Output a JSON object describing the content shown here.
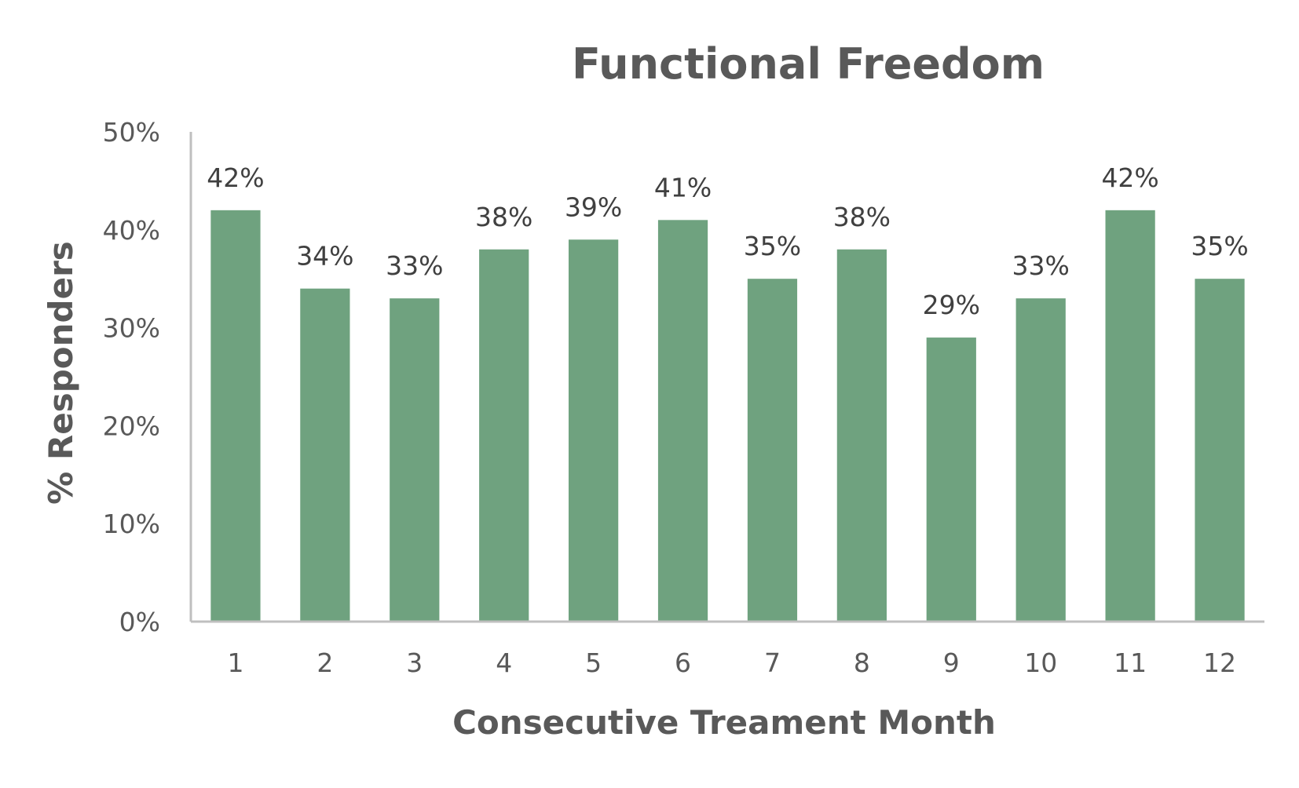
{
  "chart_data": {
    "type": "bar",
    "title": "Functional Freedom",
    "xlabel": "Consecutive Treament Month",
    "ylabel": "% Responders",
    "categories": [
      "1",
      "2",
      "3",
      "4",
      "5",
      "6",
      "7",
      "8",
      "9",
      "10",
      "11",
      "12"
    ],
    "series": [
      {
        "values": [
          42,
          34,
          33,
          38,
          39,
          41,
          35,
          38,
          29,
          33,
          42,
          35
        ],
        "data_labels": [
          "42%",
          "34%",
          "33%",
          "38%",
          "39%",
          "41%",
          "35%",
          "38%",
          "29%",
          "33%",
          "42%",
          "35%"
        ],
        "color": "#6fa27f"
      }
    ],
    "yticks": [
      "0%",
      "10%",
      "20%",
      "30%",
      "40%",
      "50%"
    ],
    "ylim": [
      0,
      50
    ],
    "grid": false,
    "legend": "none"
  }
}
